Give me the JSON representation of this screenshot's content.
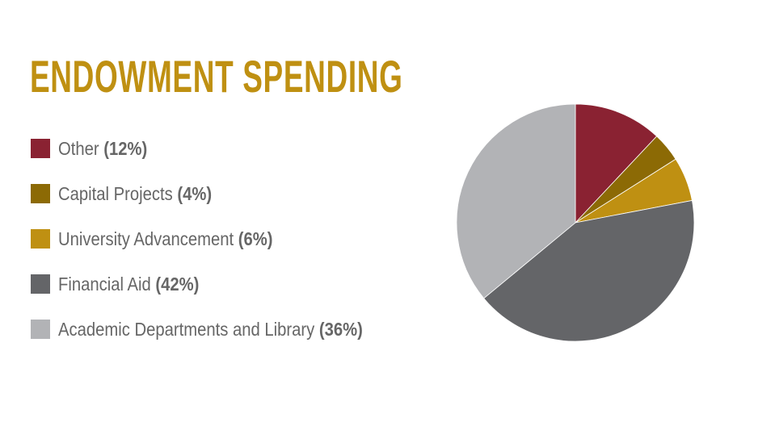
{
  "chart_data": {
    "type": "pie",
    "title": "ENDOWMENT SPENDING",
    "legend_position": "left",
    "start": "top, clockwise",
    "slices": [
      {
        "label": "Other",
        "pct_label": "(12%)",
        "value": 12,
        "color": "#8A2232"
      },
      {
        "label": "Capital Projects",
        "pct_label": "(4%)",
        "value": 4,
        "color": "#8C6A05"
      },
      {
        "label": "University Advancement",
        "pct_label": "(6%)",
        "value": 6,
        "color": "#BF9012"
      },
      {
        "label": "Financial Aid",
        "pct_label": "(42%)",
        "value": 42,
        "color": "#646568"
      },
      {
        "label": "Academic Departments and Library",
        "pct_label": "(36%)",
        "value": 36,
        "color": "#B2B3B6"
      }
    ]
  }
}
